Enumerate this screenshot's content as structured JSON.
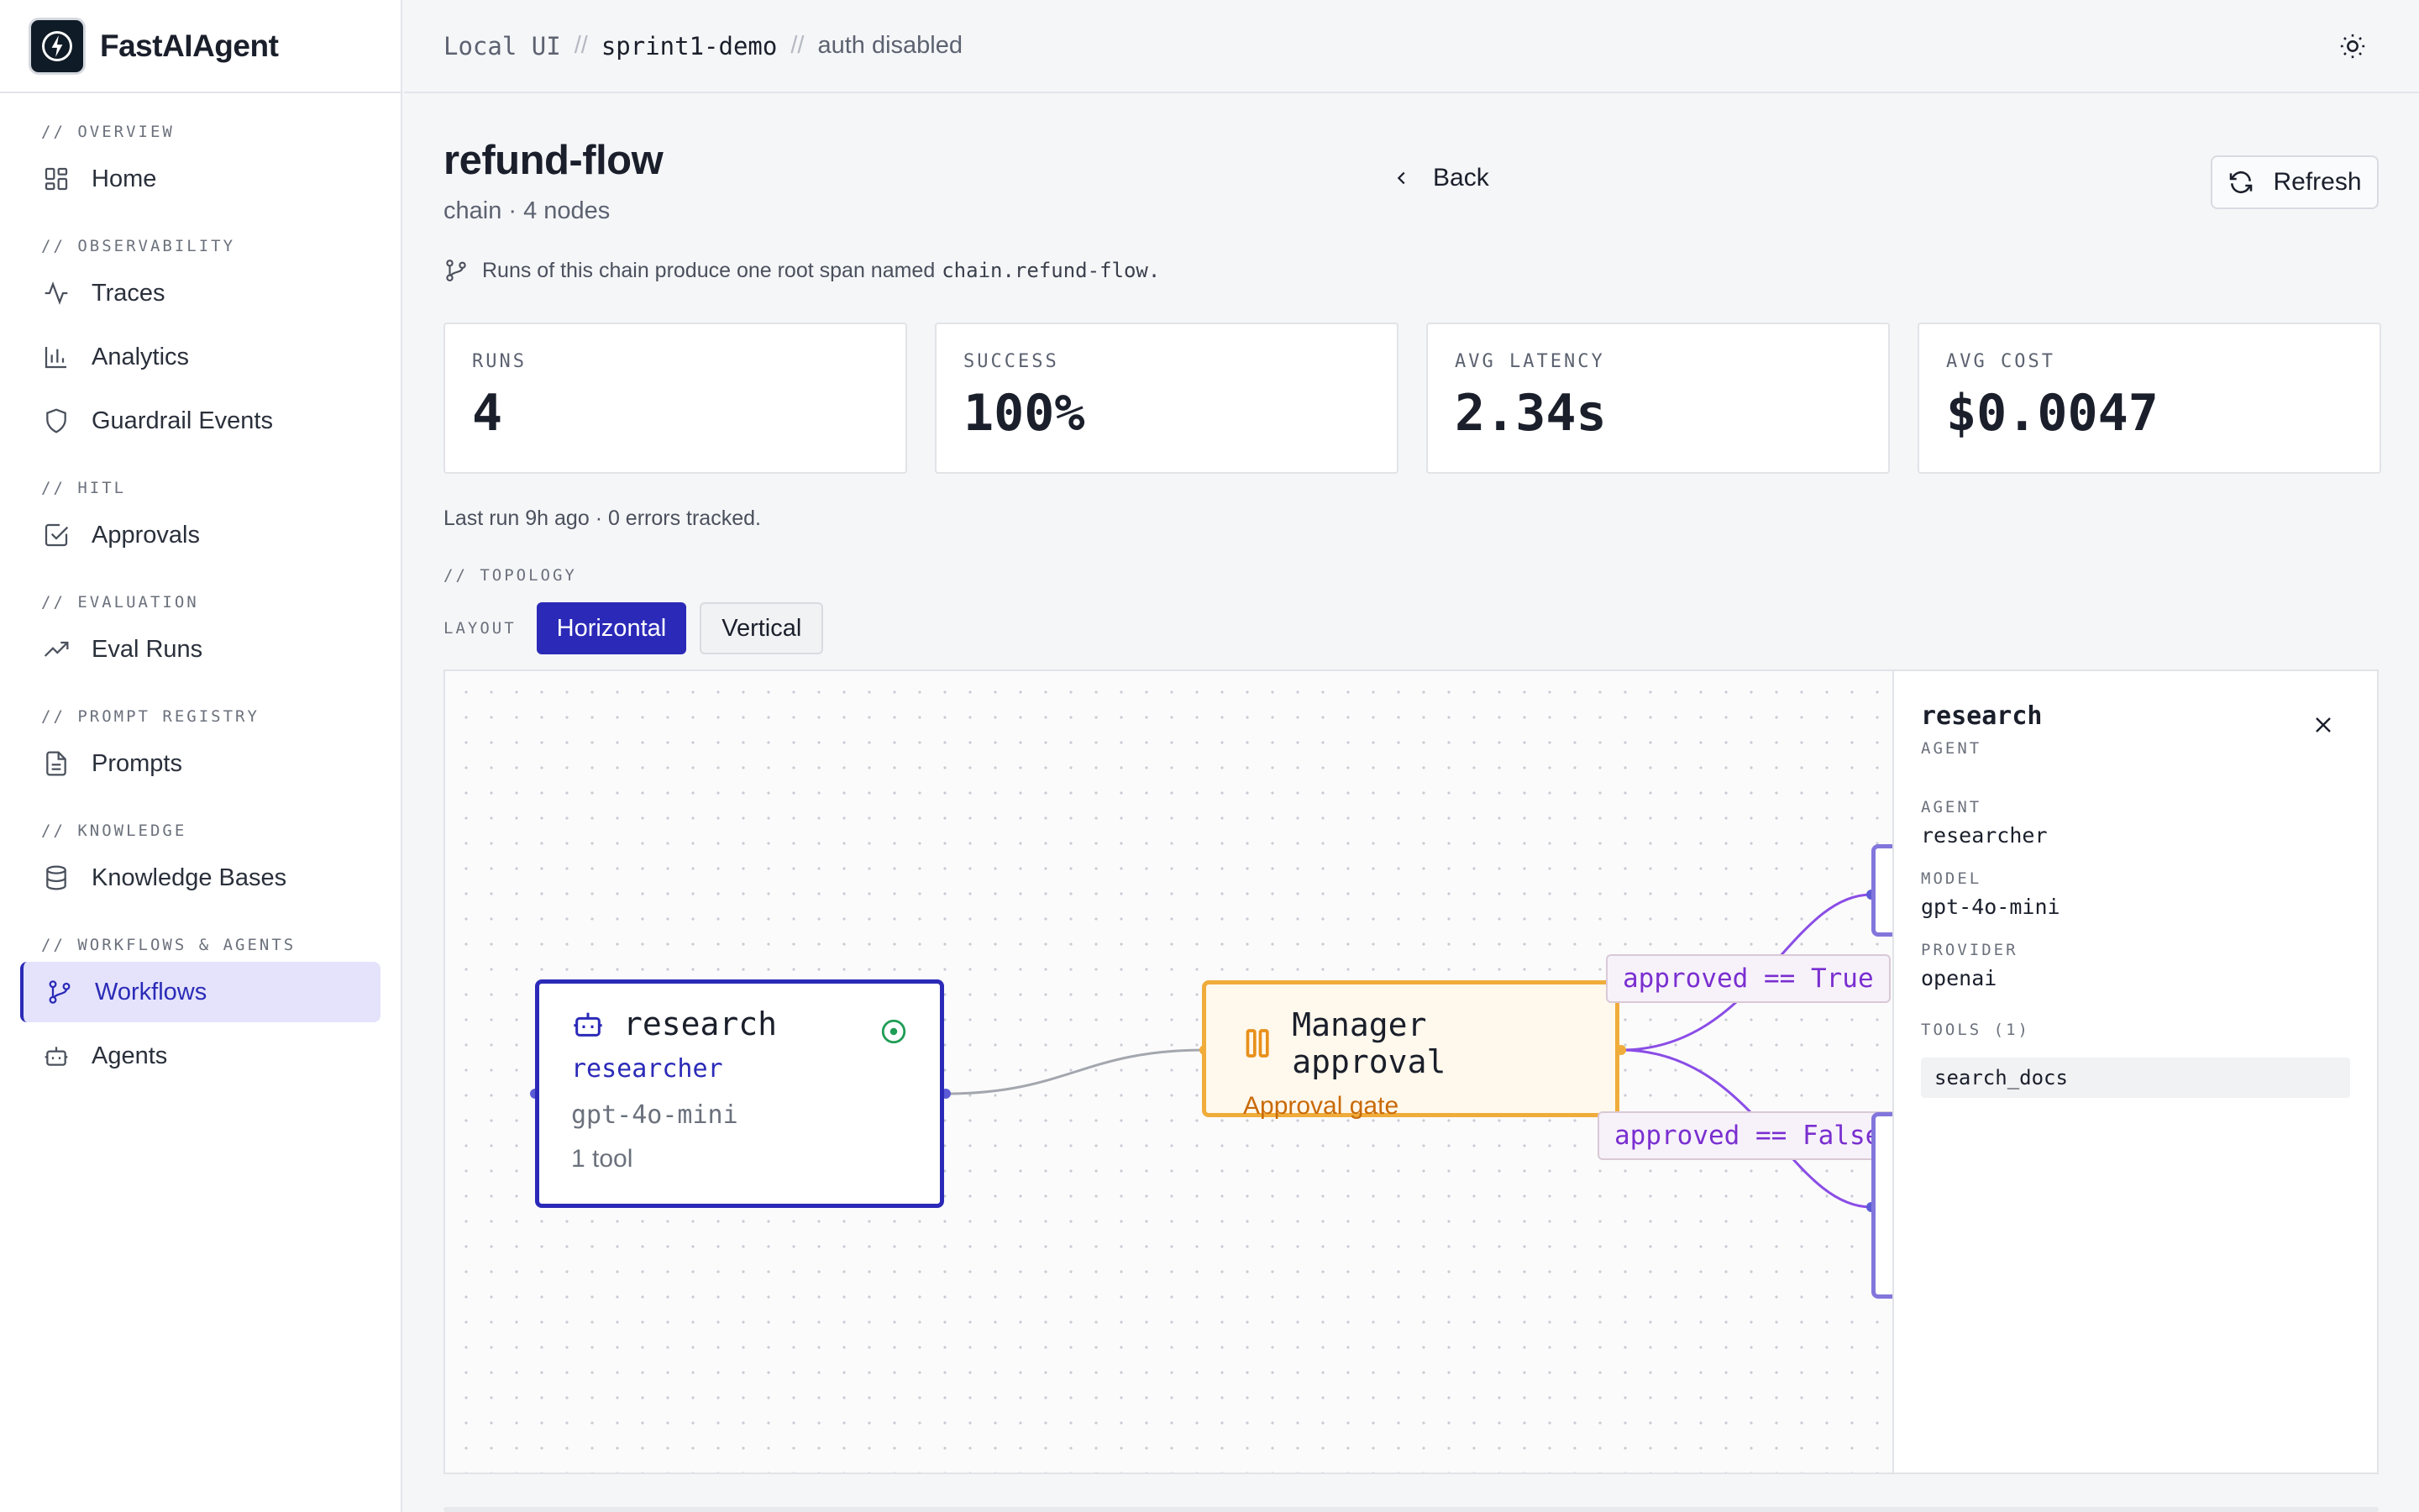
{
  "app": {
    "name": "FastAIAgent"
  },
  "breadcrumb": {
    "root": "Local UI",
    "project": "sprint1-demo",
    "auth": "auth disabled",
    "separator": "//"
  },
  "sidebar": {
    "sections": [
      {
        "label": "// OVERVIEW",
        "items": [
          {
            "label": "Home",
            "icon": "grid-icon"
          }
        ]
      },
      {
        "label": "// OBSERVABILITY",
        "items": [
          {
            "label": "Traces",
            "icon": "activity-icon"
          },
          {
            "label": "Analytics",
            "icon": "bar-chart-icon"
          },
          {
            "label": "Guardrail Events",
            "icon": "shield-icon"
          }
        ]
      },
      {
        "label": "// HITL",
        "items": [
          {
            "label": "Approvals",
            "icon": "check-square-icon"
          }
        ]
      },
      {
        "label": "// EVALUATION",
        "items": [
          {
            "label": "Eval Runs",
            "icon": "trending-up-icon"
          }
        ]
      },
      {
        "label": "// PROMPT REGISTRY",
        "items": [
          {
            "label": "Prompts",
            "icon": "file-text-icon"
          }
        ]
      },
      {
        "label": "// KNOWLEDGE",
        "items": [
          {
            "label": "Knowledge Bases",
            "icon": "database-icon"
          }
        ]
      },
      {
        "label": "// WORKFLOWS & AGENTS",
        "items": [
          {
            "label": "Workflows",
            "icon": "git-branch-icon",
            "active": true
          },
          {
            "label": "Agents",
            "icon": "bot-icon"
          }
        ]
      }
    ]
  },
  "page": {
    "title": "refund-flow",
    "subtitle": "chain · 4 nodes",
    "back_label": "Back",
    "refresh_label": "Refresh",
    "note_text": "Runs of this chain produce one root span named",
    "note_code": "chain.refund-flow.",
    "last_run": "Last run 9h ago · 0 errors tracked."
  },
  "stats": [
    {
      "label": "RUNS",
      "value": "4"
    },
    {
      "label": "SUCCESS",
      "value": "100%"
    },
    {
      "label": "AVG LATENCY",
      "value": "2.34s"
    },
    {
      "label": "AVG COST",
      "value": "$0.0047"
    }
  ],
  "topology": {
    "section_label": "// TOPOLOGY",
    "layout_label": "LAYOUT",
    "layout_options": [
      "Horizontal",
      "Vertical"
    ],
    "selected_layout": "Horizontal",
    "nodes": {
      "research": {
        "name": "research",
        "agent": "researcher",
        "model": "gpt-4o-mini",
        "tools": "1 tool"
      },
      "approval": {
        "name": "Manager approval",
        "kind": "Approval gate"
      }
    },
    "edge_labels": {
      "true_branch": "approved == True",
      "false_branch": "approved == False"
    }
  },
  "panel": {
    "title": "research",
    "type": "AGENT",
    "fields": [
      {
        "label": "AGENT",
        "value": "researcher"
      },
      {
        "label": "MODEL",
        "value": "gpt-4o-mini"
      },
      {
        "label": "PROVIDER",
        "value": "openai"
      }
    ],
    "tools_label": "TOOLS (1)",
    "tools": [
      "search_docs"
    ]
  },
  "colors": {
    "accent": "#2b2ab8",
    "approval": "#f0ac3a",
    "edge": "#8a4de6",
    "branch_text": "#7a2fd0"
  }
}
